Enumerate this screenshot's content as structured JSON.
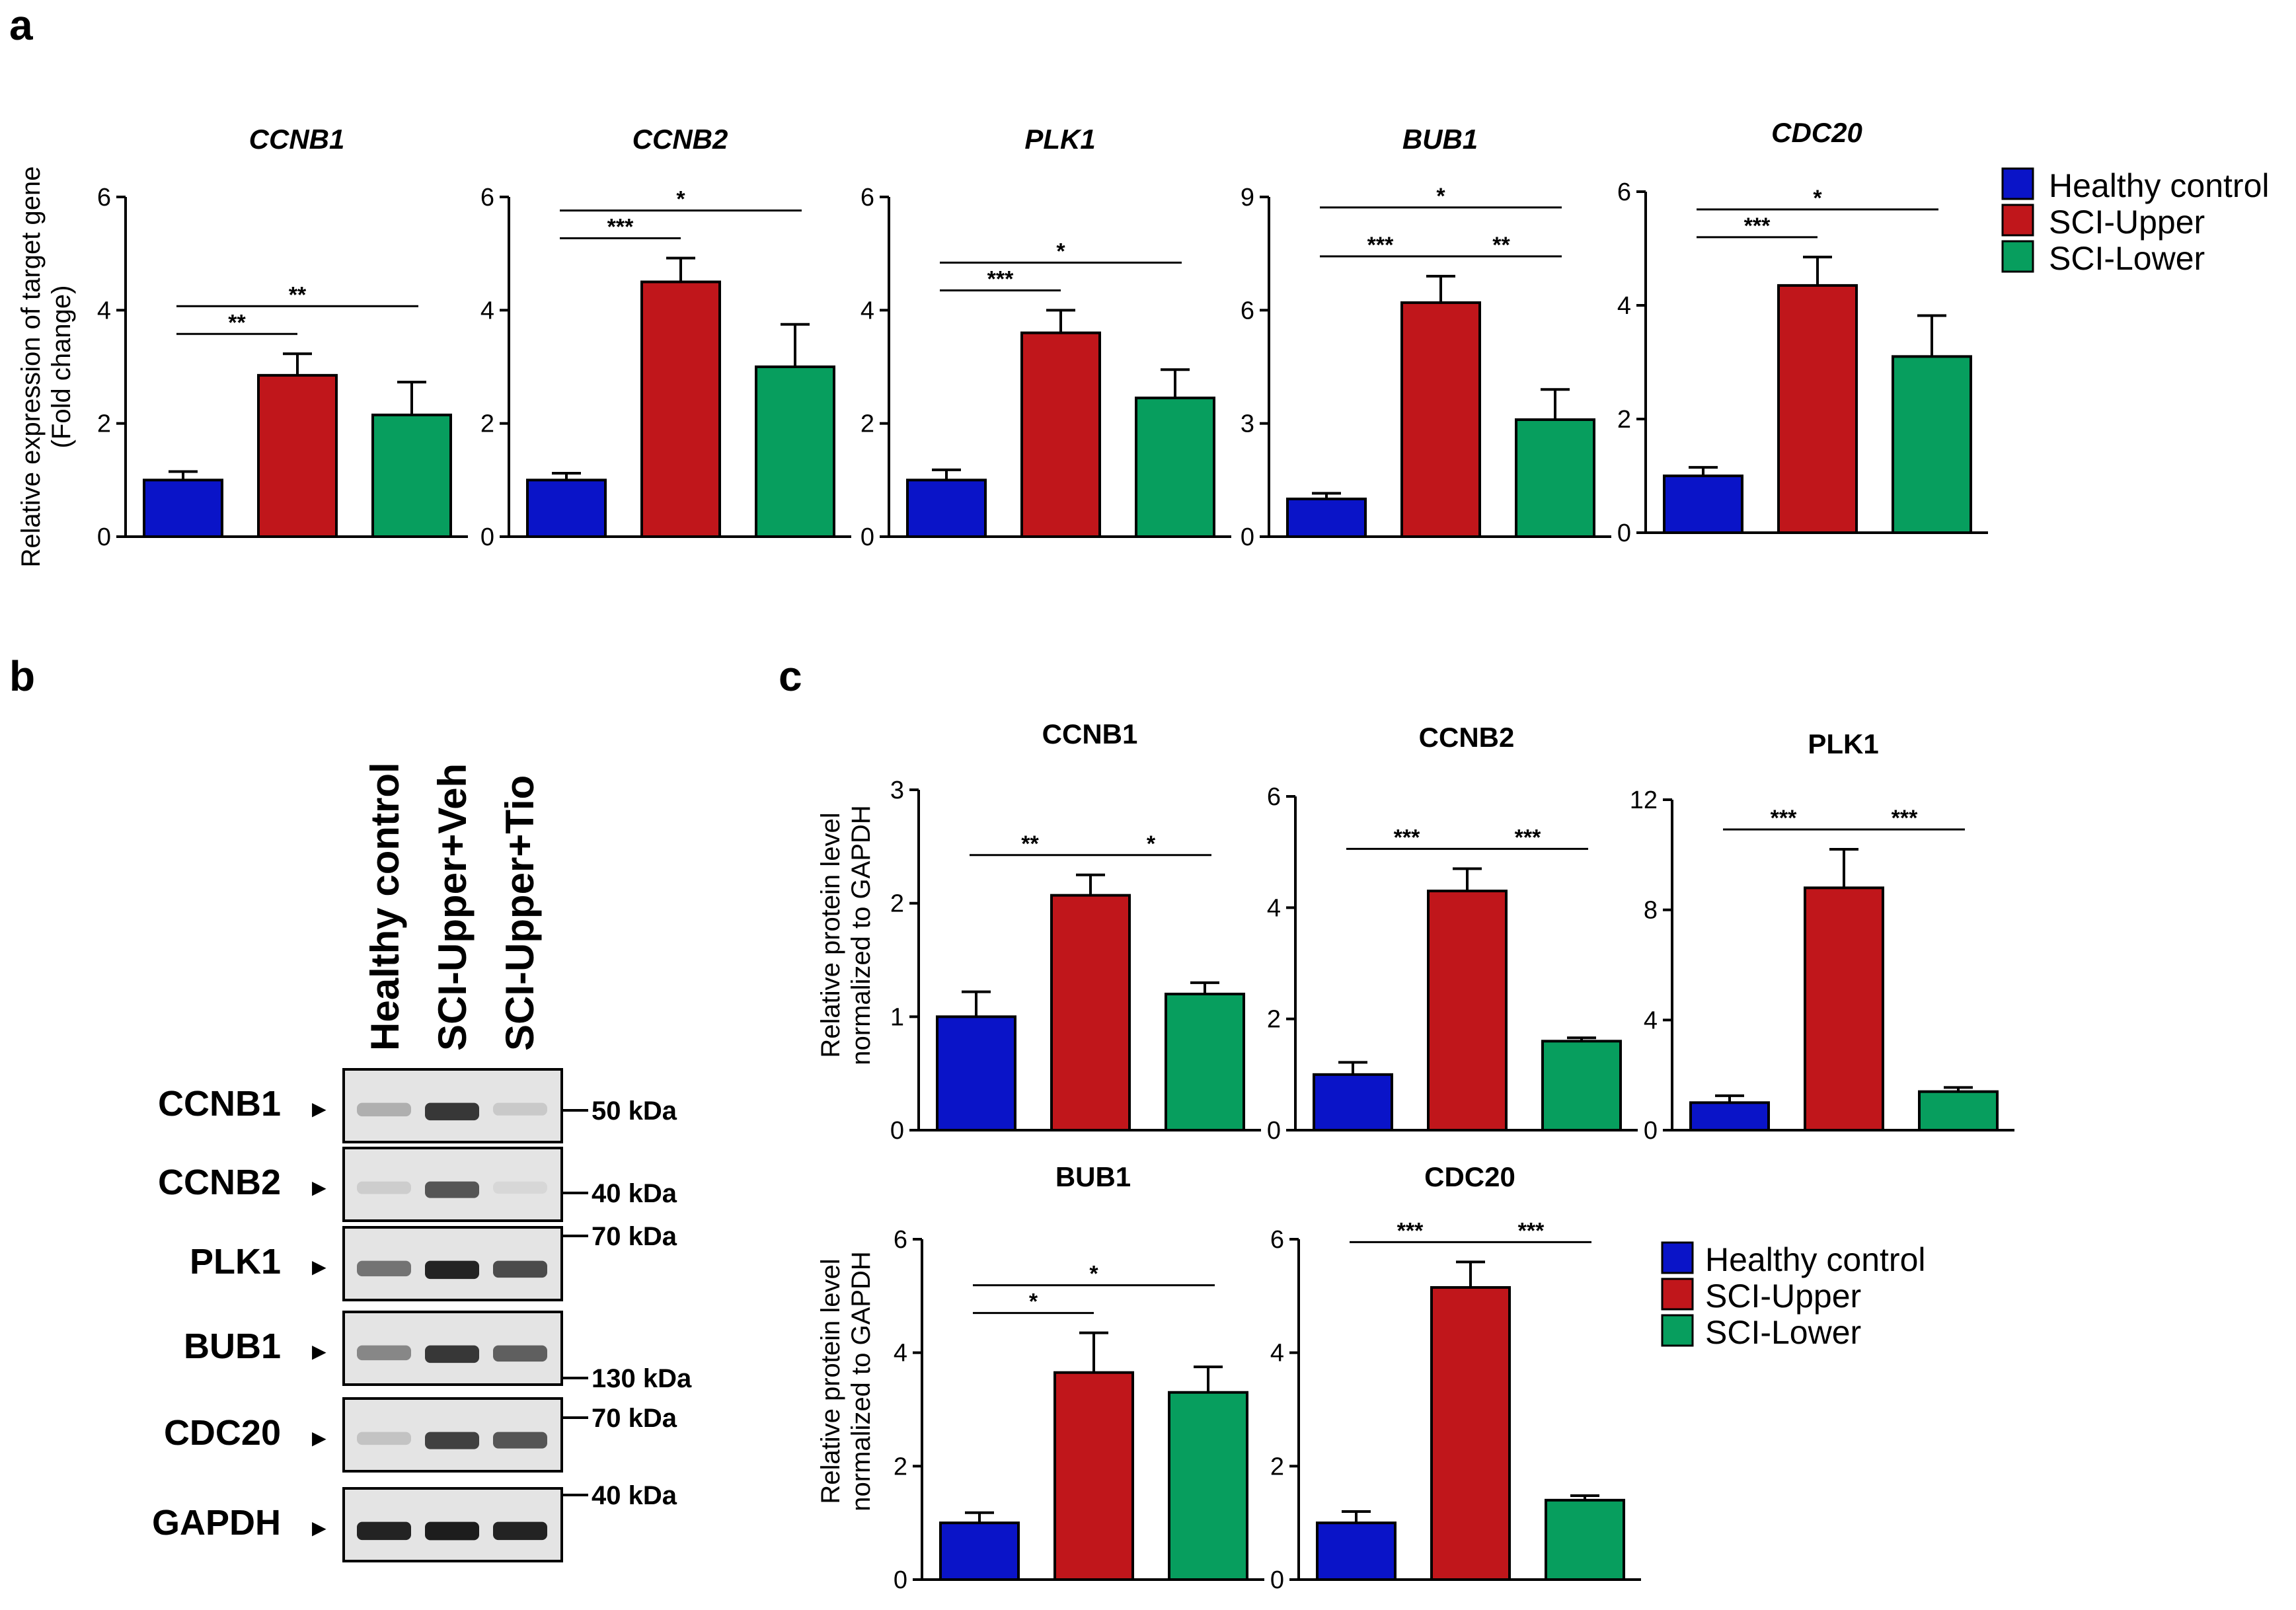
{
  "panels": {
    "a": "a",
    "b": "b",
    "c": "c"
  },
  "colors": {
    "healthy": "#0a14c8",
    "upper": "#c0161b",
    "lower": "#079e5e"
  },
  "chart_data": [
    {
      "id": "a-ccnb1",
      "panel": "a",
      "type": "bar",
      "title": "CCNB1",
      "categories": [
        "Healthy control",
        "SCI-Upper",
        "SCI-Lower"
      ],
      "values": [
        1.0,
        2.85,
        2.15
      ],
      "errors": [
        0.15,
        0.38,
        0.58
      ],
      "ylim": [
        0,
        6
      ],
      "yticks": [
        "0",
        "2",
        "4",
        "6"
      ],
      "ylabel": "Relative expression of target gene (Fold change)",
      "significance": [
        {
          "from": 0,
          "to": 1,
          "label": "**"
        },
        {
          "from": 0,
          "to": 2,
          "label": "**"
        }
      ]
    },
    {
      "id": "a-ccnb2",
      "panel": "a",
      "type": "bar",
      "title": "CCNB2",
      "categories": [
        "Healthy control",
        "SCI-Upper",
        "SCI-Lower"
      ],
      "values": [
        1.0,
        4.5,
        3.0
      ],
      "errors": [
        0.12,
        0.42,
        0.75
      ],
      "ylim": [
        0,
        6
      ],
      "yticks": [
        "0",
        "2",
        "4",
        "6"
      ],
      "ylabel": "",
      "significance": [
        {
          "from": 0,
          "to": 1,
          "label": "***"
        },
        {
          "from": 0,
          "to": 2,
          "label": "*"
        }
      ]
    },
    {
      "id": "a-plk1",
      "panel": "a",
      "type": "bar",
      "title": "PLK1",
      "categories": [
        "Healthy control",
        "SCI-Upper",
        "SCI-Lower"
      ],
      "values": [
        1.0,
        3.6,
        2.45
      ],
      "errors": [
        0.18,
        0.4,
        0.5
      ],
      "ylim": [
        0,
        6
      ],
      "yticks": [
        "0",
        "2",
        "4",
        "6"
      ],
      "ylabel": "",
      "significance": [
        {
          "from": 0,
          "to": 1,
          "label": "***"
        },
        {
          "from": 0,
          "to": 2,
          "label": "*"
        }
      ]
    },
    {
      "id": "a-bub1",
      "panel": "a",
      "type": "bar",
      "title": "BUB1",
      "categories": [
        "Healthy control",
        "SCI-Upper",
        "SCI-Lower"
      ],
      "values": [
        1.0,
        6.2,
        3.1
      ],
      "errors": [
        0.15,
        0.7,
        0.8
      ],
      "ylim": [
        0,
        9
      ],
      "yticks": [
        "0",
        "3",
        "6",
        "9"
      ],
      "ylabel": "",
      "significance": [
        {
          "from": 0,
          "to": 1,
          "label": "***"
        },
        {
          "from": 1,
          "to": 2,
          "label": "**"
        },
        {
          "from": 0,
          "to": 2,
          "label": "*"
        }
      ]
    },
    {
      "id": "a-cdc20",
      "panel": "a",
      "type": "bar",
      "title": "CDC20",
      "categories": [
        "Healthy control",
        "SCI-Upper",
        "SCI-Lower"
      ],
      "values": [
        1.0,
        4.35,
        3.1
      ],
      "errors": [
        0.15,
        0.5,
        0.72
      ],
      "ylim": [
        0,
        6
      ],
      "yticks": [
        "0",
        "2",
        "4",
        "6"
      ],
      "ylabel": "",
      "significance": [
        {
          "from": 0,
          "to": 1,
          "label": "***"
        },
        {
          "from": 0,
          "to": 2,
          "label": "*"
        }
      ]
    },
    {
      "id": "c-ccnb1",
      "panel": "c",
      "type": "bar",
      "title": "CCNB1",
      "categories": [
        "Healthy control",
        "SCI-Upper",
        "SCI-Lower"
      ],
      "values": [
        1.0,
        2.07,
        1.2
      ],
      "errors": [
        0.22,
        0.18,
        0.1
      ],
      "ylim": [
        0,
        3
      ],
      "yticks": [
        "0",
        "1",
        "2",
        "3"
      ],
      "ylabel": "Relative protein level normalized to GAPDH",
      "significance": [
        {
          "from": 0,
          "to": 1,
          "label": "**"
        },
        {
          "from": 1,
          "to": 2,
          "label": "*"
        }
      ]
    },
    {
      "id": "c-ccnb2",
      "panel": "c",
      "type": "bar",
      "title": "CCNB2",
      "categories": [
        "Healthy control",
        "SCI-Upper",
        "SCI-Lower"
      ],
      "values": [
        1.0,
        4.3,
        1.6
      ],
      "errors": [
        0.22,
        0.4,
        0.06
      ],
      "ylim": [
        0,
        6
      ],
      "yticks": [
        "0",
        "2",
        "4",
        "6"
      ],
      "ylabel": "",
      "significance": [
        {
          "from": 0,
          "to": 1,
          "label": "***"
        },
        {
          "from": 1,
          "to": 2,
          "label": "***"
        }
      ]
    },
    {
      "id": "c-plk1",
      "panel": "c",
      "type": "bar",
      "title": "PLK1",
      "categories": [
        "Healthy control",
        "SCI-Upper",
        "SCI-Lower"
      ],
      "values": [
        1.0,
        8.8,
        1.4
      ],
      "errors": [
        0.25,
        1.4,
        0.15
      ],
      "ylim": [
        0,
        12
      ],
      "yticks": [
        "0",
        "4",
        "8",
        "12"
      ],
      "ylabel": "",
      "significance": [
        {
          "from": 0,
          "to": 1,
          "label": "***"
        },
        {
          "from": 1,
          "to": 2,
          "label": "***"
        }
      ]
    },
    {
      "id": "c-bub1",
      "panel": "c",
      "type": "bar",
      "title": "BUB1",
      "categories": [
        "Healthy control",
        "SCI-Upper",
        "SCI-Lower"
      ],
      "values": [
        1.0,
        3.65,
        3.3
      ],
      "errors": [
        0.18,
        0.7,
        0.45
      ],
      "ylim": [
        0,
        6
      ],
      "yticks": [
        "0",
        "2",
        "4",
        "6"
      ],
      "ylabel": "Relative protein level normalized to GAPDH",
      "significance": [
        {
          "from": 0,
          "to": 1,
          "label": "*"
        },
        {
          "from": 0,
          "to": 2,
          "label": "*"
        }
      ]
    },
    {
      "id": "c-cdc20",
      "panel": "c",
      "type": "bar",
      "title": "CDC20",
      "categories": [
        "Healthy control",
        "SCI-Upper",
        "SCI-Lower"
      ],
      "values": [
        1.0,
        5.15,
        1.4
      ],
      "errors": [
        0.2,
        0.45,
        0.08
      ],
      "ylim": [
        0,
        6
      ],
      "yticks": [
        "0",
        "2",
        "4",
        "6"
      ],
      "ylabel": "",
      "significance": [
        {
          "from": 0,
          "to": 1,
          "label": "***"
        },
        {
          "from": 1,
          "to": 2,
          "label": "***"
        }
      ]
    }
  ],
  "legend_a": [
    "Healthy control",
    "SCI-Upper",
    "SCI-Lower"
  ],
  "legend_c": [
    "Healthy control",
    "SCI-Upper",
    "SCI-Lower"
  ],
  "blot": {
    "lanes": [
      "Healthy control",
      "SCI-Upper+Veh",
      "SCI-Upper+Tio"
    ],
    "arrow": "►",
    "rows": [
      {
        "label": "CCNB1",
        "bands": [
          0.25,
          0.85,
          0.12
        ]
      },
      {
        "label": "CCNB2",
        "bands": [
          0.1,
          0.7,
          0.05
        ]
      },
      {
        "label": "PLK1",
        "bands": [
          0.55,
          0.95,
          0.75
        ]
      },
      {
        "label": "BUB1",
        "bands": [
          0.45,
          0.85,
          0.65
        ]
      },
      {
        "label": "CDC20",
        "bands": [
          0.15,
          0.8,
          0.7
        ]
      },
      {
        "label": "GAPDH",
        "bands": [
          0.95,
          0.98,
          0.95
        ]
      }
    ],
    "markers": [
      "50 kDa",
      "40 kDa",
      "70 kDa",
      "130 kDa",
      "70 kDa",
      "40 kDa"
    ]
  }
}
